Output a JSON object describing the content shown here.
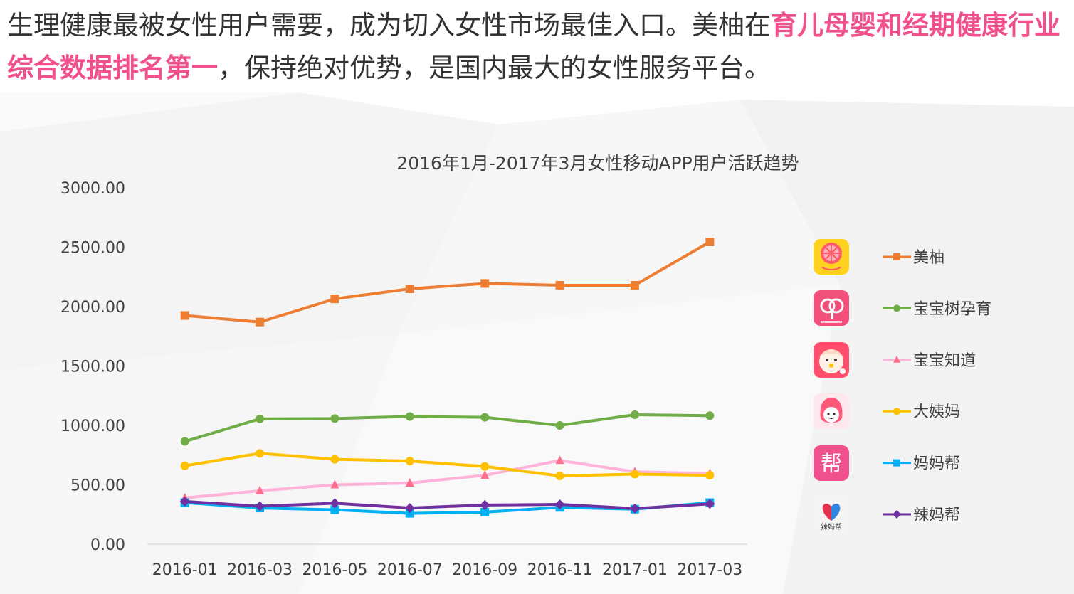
{
  "headline": {
    "part1": "生理健康最被女性用户需要，成为切入女性市场最佳入口。美柚在",
    "highlight": "育儿母婴和经期健康行业综合数据排名第一",
    "part2": "，保持绝对优势，是国内最大的女性服务平台。",
    "highlight_color": "#f0508c"
  },
  "chart_data": {
    "type": "line",
    "title": "2016年1月-2017年3月女性移动APP用户活跃趋势",
    "xlabel": "",
    "ylabel": "",
    "categories": [
      "2016-01",
      "2016-03",
      "2016-05",
      "2016-07",
      "2016-09",
      "2016-11",
      "2017-01",
      "2017-03"
    ],
    "ylim": [
      0,
      3000
    ],
    "yticks": [
      "0.00",
      "500.00",
      "1000.00",
      "1500.00",
      "2000.00",
      "2500.00",
      "3000.00"
    ],
    "grid": false,
    "legend": "right",
    "series": [
      {
        "name": "美柚",
        "color": "#ed7d31",
        "marker": "square",
        "icon": "meetyou-icon",
        "values": [
          1925,
          1870,
          2065,
          2150,
          2195,
          2180,
          2180,
          2545
        ]
      },
      {
        "name": "宝宝树孕育",
        "color": "#70ad47",
        "marker": "circle",
        "icon": "babytree-icon",
        "values": [
          865,
          1055,
          1058,
          1075,
          1068,
          1000,
          1090,
          1082
        ]
      },
      {
        "name": "宝宝知道",
        "color": "#ffb3d9",
        "marker": "triangle",
        "icon": "baby-face-icon",
        "values": [
          390,
          450,
          500,
          515,
          580,
          705,
          610,
          595
        ]
      },
      {
        "name": "大姨妈",
        "color": "#ffc000",
        "marker": "circle",
        "icon": "dayima-icon",
        "values": [
          660,
          765,
          715,
          700,
          655,
          575,
          590,
          580
        ]
      },
      {
        "name": "妈妈帮",
        "color": "#00b0f0",
        "marker": "square",
        "icon": "bang-icon",
        "icon_text": "帮",
        "values": [
          350,
          305,
          290,
          260,
          270,
          310,
          295,
          350
        ]
      },
      {
        "name": "辣妈帮",
        "color": "#7030a0",
        "marker": "diamond",
        "icon": "heart-logo-icon",
        "icon_text": "辣妈帮",
        "values": [
          360,
          320,
          345,
          305,
          330,
          335,
          300,
          340
        ]
      }
    ]
  }
}
